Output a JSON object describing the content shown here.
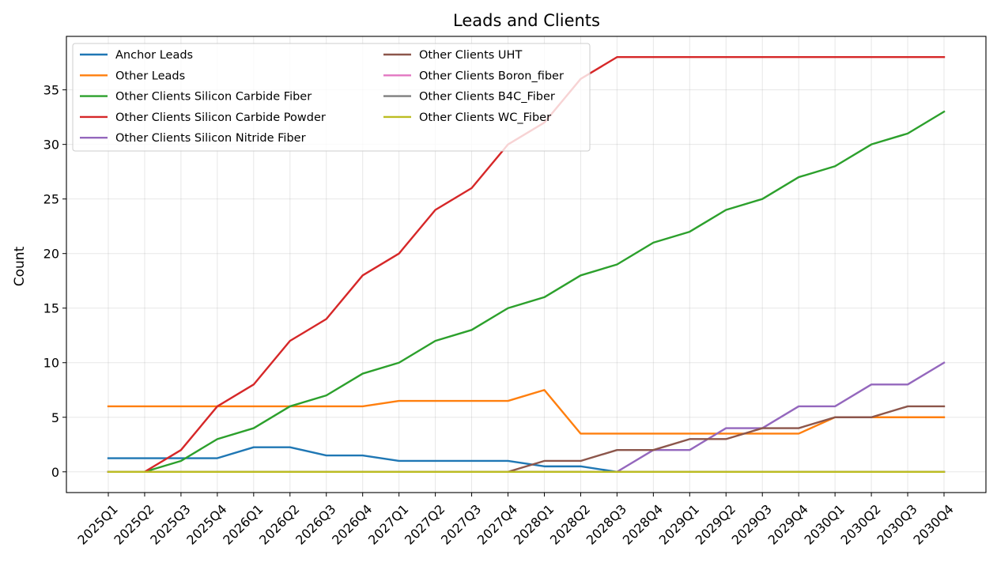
{
  "chart_data": {
    "type": "line",
    "title": "Leads and Clients",
    "xlabel": "",
    "ylabel": "Count",
    "ylim": [
      -1.9,
      39.9
    ],
    "yticks": [
      0,
      5,
      10,
      15,
      20,
      25,
      30,
      35
    ],
    "grid": true,
    "legend_position": "upper-left",
    "categories": [
      "2025Q1",
      "2025Q2",
      "2025Q3",
      "2025Q4",
      "2026Q1",
      "2026Q2",
      "2026Q3",
      "2026Q4",
      "2027Q1",
      "2027Q2",
      "2027Q3",
      "2027Q4",
      "2028Q1",
      "2028Q2",
      "2028Q3",
      "2028Q4",
      "2029Q1",
      "2029Q2",
      "2029Q3",
      "2029Q4",
      "2030Q1",
      "2030Q2",
      "2030Q3",
      "2030Q4"
    ],
    "series": [
      {
        "name": "Anchor Leads",
        "color": "#1f77b4",
        "values": [
          1.25,
          1.25,
          1.25,
          1.25,
          2.25,
          2.25,
          1.5,
          1.5,
          1,
          1,
          1,
          1,
          0.5,
          0.5,
          0,
          0,
          0,
          0,
          0,
          0,
          0,
          0,
          0,
          0
        ]
      },
      {
        "name": "Other Leads",
        "color": "#ff7f0e",
        "values": [
          6,
          6,
          6,
          6,
          6,
          6,
          6,
          6,
          6.5,
          6.5,
          6.5,
          6.5,
          7.5,
          3.5,
          3.5,
          3.5,
          3.5,
          3.5,
          3.5,
          3.5,
          5,
          5,
          5,
          5
        ]
      },
      {
        "name": "Other Clients Silicon Carbide Fiber",
        "color": "#2ca02c",
        "values": [
          0,
          0,
          1,
          3,
          4,
          6,
          7,
          9,
          10,
          12,
          13,
          15,
          16,
          18,
          19,
          21,
          22,
          24,
          25,
          27,
          28,
          30,
          31,
          33
        ]
      },
      {
        "name": "Other Clients Silicon Carbide Powder",
        "color": "#d62728",
        "values": [
          0,
          0,
          2,
          6,
          8,
          12,
          14,
          18,
          20,
          24,
          26,
          30,
          32,
          36,
          38,
          38,
          38,
          38,
          38,
          38,
          38,
          38,
          38,
          38
        ]
      },
      {
        "name": "Other Clients Silicon Nitride Fiber",
        "color": "#9467bd",
        "values": [
          0,
          0,
          0,
          0,
          0,
          0,
          0,
          0,
          0,
          0,
          0,
          0,
          0,
          0,
          0,
          2,
          2,
          4,
          4,
          6,
          6,
          8,
          8,
          10
        ]
      },
      {
        "name": "Other Clients UHT",
        "color": "#8c564b",
        "values": [
          0,
          0,
          0,
          0,
          0,
          0,
          0,
          0,
          0,
          0,
          0,
          0,
          1,
          1,
          2,
          2,
          3,
          3,
          4,
          4,
          5,
          5,
          6,
          6
        ]
      },
      {
        "name": "Other Clients Boron_fiber",
        "color": "#e377c2",
        "values": [
          0,
          0,
          0,
          0,
          0,
          0,
          0,
          0,
          0,
          0,
          0,
          0,
          0,
          0,
          0,
          0,
          0,
          0,
          0,
          0,
          0,
          0,
          0,
          0
        ]
      },
      {
        "name": "Other Clients B4C_Fiber",
        "color": "#7f7f7f",
        "values": [
          0,
          0,
          0,
          0,
          0,
          0,
          0,
          0,
          0,
          0,
          0,
          0,
          0,
          0,
          0,
          0,
          0,
          0,
          0,
          0,
          0,
          0,
          0,
          0
        ]
      },
      {
        "name": "Other Clients WC_Fiber",
        "color": "#bcbd22",
        "values": [
          0,
          0,
          0,
          0,
          0,
          0,
          0,
          0,
          0,
          0,
          0,
          0,
          0,
          0,
          0,
          0,
          0,
          0,
          0,
          0,
          0,
          0,
          0,
          0
        ]
      }
    ]
  }
}
